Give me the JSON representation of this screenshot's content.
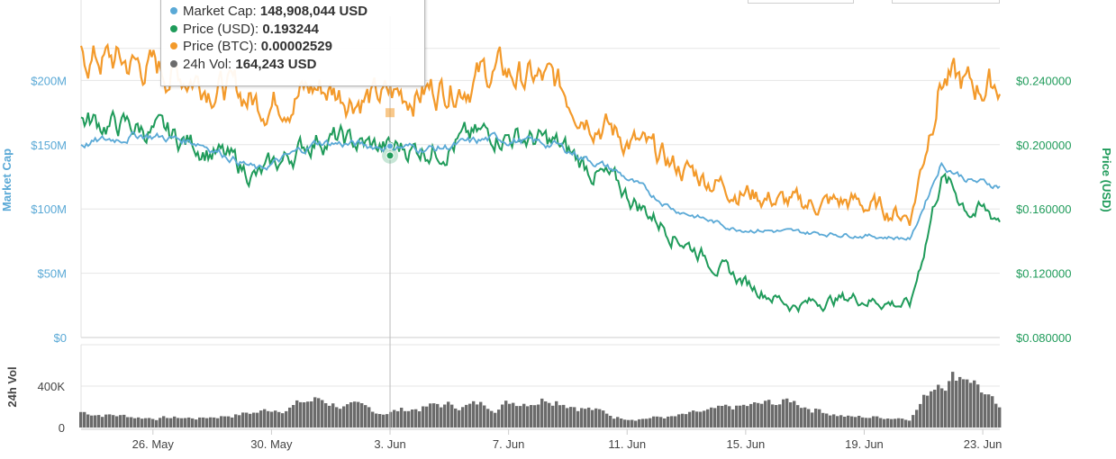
{
  "chart_data": {
    "type": "line",
    "x_ticks": [
      "26. May",
      "30. May",
      "3. Jun",
      "7. Jun",
      "11. Jun",
      "15. Jun",
      "19. Jun",
      "23. Jun"
    ],
    "x_range": [
      "2018-05-24",
      "2018-06-24"
    ],
    "left_axis": {
      "title": "Market Cap",
      "ticks": [
        "$0",
        "$50M",
        "$100M",
        "$150M",
        "$200M"
      ],
      "range": [
        0,
        250000000
      ],
      "color": "#5aa9d6"
    },
    "right_axis": {
      "title": "Price (USD)",
      "ticks": [
        "$0.080000",
        "$0.120000",
        "$0.160000",
        "$0.200000",
        "$0.240000"
      ],
      "range": [
        0.08,
        0.28
      ],
      "color": "#1f9b5a"
    },
    "volume_axis": {
      "title": "24h Vol",
      "ticks": [
        "0",
        "400K"
      ],
      "range": [
        0,
        800000
      ],
      "color": "#555555"
    },
    "series": [
      {
        "name": "Market Cap",
        "color": "#5aa9d6",
        "axis": "left",
        "x": [
          "2018-05-24",
          "2018-05-26",
          "2018-05-28",
          "2018-05-30",
          "2018-06-01",
          "2018-06-03",
          "2018-06-05",
          "2018-06-07",
          "2018-06-09",
          "2018-06-11",
          "2018-06-13",
          "2018-06-15",
          "2018-06-17",
          "2018-06-19",
          "2018-06-21",
          "2018-06-22",
          "2018-06-23",
          "2018-06-24"
        ],
        "values": [
          150000000,
          158000000,
          152000000,
          130000000,
          152000000,
          149000000,
          147000000,
          155000000,
          150000000,
          130000000,
          100000000,
          85000000,
          82000000,
          80000000,
          77000000,
          135000000,
          122000000,
          118000000
        ]
      },
      {
        "name": "Price (USD)",
        "color": "#1f9b5a",
        "axis": "right",
        "x": [
          "2018-05-24",
          "2018-05-26",
          "2018-05-28",
          "2018-05-30",
          "2018-06-01",
          "2018-06-03",
          "2018-06-05",
          "2018-06-07",
          "2018-06-09",
          "2018-06-11",
          "2018-06-13",
          "2018-06-15",
          "2018-06-17",
          "2018-06-19",
          "2018-06-21",
          "2018-06-22",
          "2018-06-23",
          "2018-06-24"
        ],
        "values": [
          0.215,
          0.21,
          0.2,
          0.18,
          0.205,
          0.198,
          0.198,
          0.208,
          0.2,
          0.175,
          0.145,
          0.118,
          0.1,
          0.105,
          0.1,
          0.18,
          0.16,
          0.155
        ]
      },
      {
        "name": "Price (BTC)",
        "color": "#f39a2b",
        "axis": "left",
        "x": [
          "2018-05-24",
          "2018-05-26",
          "2018-05-28",
          "2018-05-30",
          "2018-06-01",
          "2018-06-03",
          "2018-06-05",
          "2018-06-07",
          "2018-06-09",
          "2018-06-11",
          "2018-06-13",
          "2018-06-15",
          "2018-06-17",
          "2018-06-19",
          "2018-06-21",
          "2018-06-22",
          "2018-06-23",
          "2018-06-24"
        ],
        "values": [
          3.05e-05,
          2.95e-05,
          2.85e-05,
          2.62e-05,
          2.75e-05,
          2.65e-05,
          2.75e-05,
          2.9e-05,
          2.78e-05,
          2.35e-05,
          2.05e-05,
          1.85e-05,
          1.7e-05,
          1.72e-05,
          1.6e-05,
          2.85e-05,
          2.75e-05,
          2.8e-05
        ]
      },
      {
        "name": "24h Vol",
        "color": "#6b6b6b",
        "axis": "volume",
        "x": [
          "2018-05-24",
          "2018-05-26",
          "2018-05-28",
          "2018-05-30",
          "2018-06-01",
          "2018-06-03",
          "2018-06-05",
          "2018-06-07",
          "2018-06-09",
          "2018-06-11",
          "2018-06-13",
          "2018-06-15",
          "2018-06-17",
          "2018-06-19",
          "2018-06-21",
          "2018-06-22",
          "2018-06-23",
          "2018-06-24"
        ],
        "values": [
          150000,
          100000,
          90000,
          150000,
          270000,
          140000,
          210000,
          220000,
          320000,
          100000,
          100000,
          180000,
          250000,
          100000,
          100000,
          500000,
          550000,
          150000
        ]
      }
    ],
    "tooltip": {
      "rows": [
        {
          "label": "Market Cap",
          "value": "148,908,044 USD",
          "color": "#5aa9d6"
        },
        {
          "label": "Price (USD)",
          "value": "0.193244",
          "color": "#1f9b5a"
        },
        {
          "label": "Price (BTC)",
          "value": "0.00002529",
          "color": "#f39a2b"
        },
        {
          "label": "24h Vol",
          "value": "164,243 USD",
          "color": "#6b6b6b"
        }
      ]
    },
    "crosshair_date": "2018-06-03",
    "grid": true
  }
}
